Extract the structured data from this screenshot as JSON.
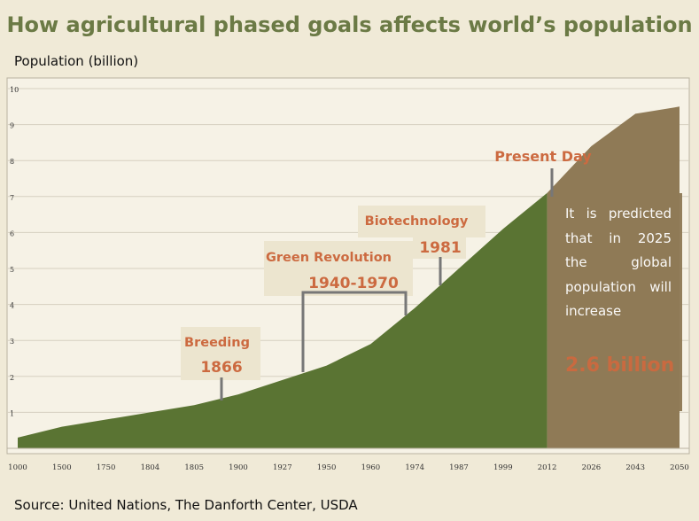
{
  "title": "How agricultural phased goals affects world’s population",
  "ylabel": "Population (billion)",
  "source": "Source: United Nations, The Danforth Center, USDA",
  "prediction": {
    "text": "It is predicted that in 2025 the global population will increase",
    "value": "2.6 billion"
  },
  "colors": {
    "area_green": "#5a7433",
    "area_brown": "#8f7a56",
    "annotation": "#cc6a40",
    "title": "#6b7a45"
  },
  "chart_data": {
    "type": "area",
    "title": "How agricultural phased goals affects world’s population",
    "xlabel": "",
    "ylabel": "Population (billion)",
    "ylim": [
      0,
      10
    ],
    "yticks": [
      "1",
      "2",
      "3",
      "4",
      "5",
      "6",
      "7",
      "8",
      "9",
      "10"
    ],
    "x": [
      "1000",
      "1500",
      "1750",
      "1804",
      "1805",
      "1900",
      "1927",
      "1950",
      "1960",
      "1974",
      "1987",
      "1999",
      "2012",
      "2026",
      "2043",
      "2050"
    ],
    "series": [
      {
        "values": [
          0.3,
          0.6,
          0.8,
          1.0,
          1.2,
          1.5,
          1.9,
          2.3,
          2.9,
          3.9,
          5.0,
          6.1,
          7.1,
          null,
          null,
          null
        ]
      },
      {
        "values": [
          null,
          null,
          null,
          null,
          null,
          null,
          null,
          null,
          null,
          null,
          null,
          null,
          7.1,
          8.4,
          9.3,
          9.5
        ]
      }
    ],
    "annotations": [
      {
        "label": "Breeding",
        "year": "1866"
      },
      {
        "label": "Green Revolution",
        "year": "1940-1970"
      },
      {
        "label": "Biotechnology",
        "year": "1981"
      },
      {
        "label": "Present Day",
        "year": ""
      }
    ],
    "grid": true
  }
}
